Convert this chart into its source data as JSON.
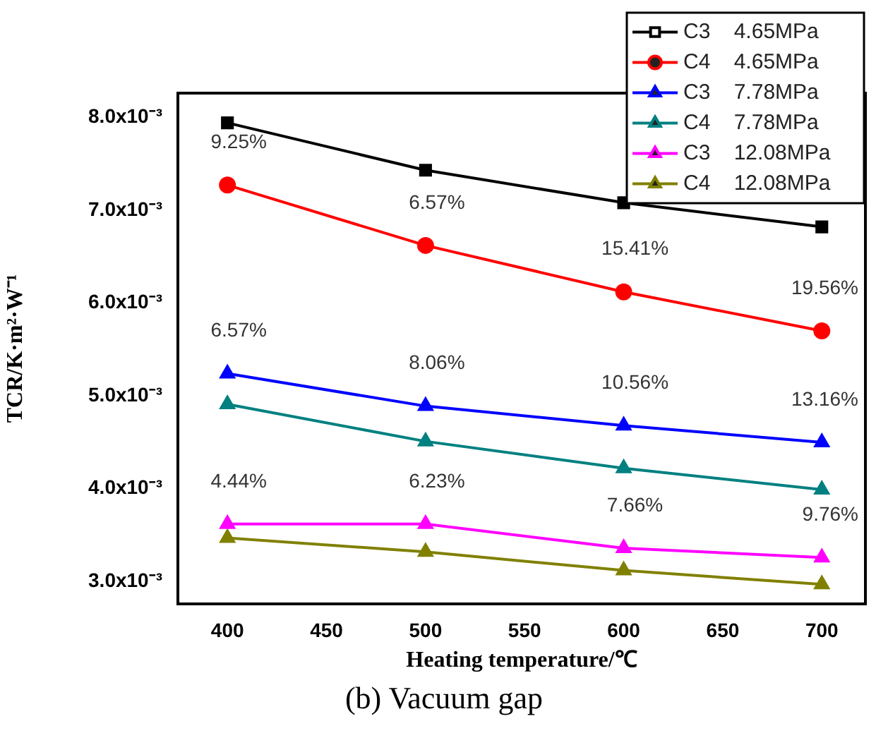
{
  "chart_data": {
    "type": "line",
    "xlabel": "Heating temperature/℃",
    "ylabel": "TCR/K·m²·W⁻¹",
    "x": [
      400,
      500,
      600,
      700
    ],
    "xlim": [
      375,
      722
    ],
    "xticks": [
      400,
      450,
      500,
      550,
      600,
      650,
      700
    ],
    "ylim": [
      0.00276,
      0.00826
    ],
    "yticks": [
      {
        "value": 0.003,
        "label": "3.0x10⁻³"
      },
      {
        "value": 0.004,
        "label": "4.0x10⁻³"
      },
      {
        "value": 0.005,
        "label": "5.0x10⁻³"
      },
      {
        "value": 0.006,
        "label": "6.0x10⁻³"
      },
      {
        "value": 0.007,
        "label": "7.0x10⁻³"
      },
      {
        "value": 0.008,
        "label": "8.0x10⁻³"
      }
    ],
    "series": [
      {
        "name": "C3    4.65MPa",
        "color": "#000000",
        "marker": "square",
        "values": [
          0.00794,
          0.00743,
          0.00708,
          0.00682
        ]
      },
      {
        "name": "C4    4.65MPa",
        "color": "#ff0000",
        "marker": "circle",
        "values": [
          0.00727,
          0.00662,
          0.00612,
          0.0057
        ]
      },
      {
        "name": "C3    7.78MPa",
        "color": "#0000ff",
        "marker": "triangle",
        "values": [
          0.00524,
          0.00489,
          0.00468,
          0.0045
        ]
      },
      {
        "name": "C4    7.78MPa",
        "color": "#008080",
        "marker": "triangle",
        "values": [
          0.00491,
          0.00451,
          0.00422,
          0.00399
        ]
      },
      {
        "name": "C3    12.08MPa",
        "color": "#ff00ff",
        "marker": "triangle",
        "values": [
          0.00362,
          0.00362,
          0.00336,
          0.00326
        ]
      },
      {
        "name": "C4    12.08MPa",
        "color": "#808000",
        "marker": "triangle",
        "values": [
          0.00347,
          0.00332,
          0.00312,
          0.00297
        ]
      }
    ],
    "annotations": [
      "9.25%",
      "6.57%",
      "15.41%",
      "19.56%",
      "6.57%",
      "8.06%",
      "10.56%",
      "13.16%",
      "4.44%",
      "6.23%",
      "7.66%",
      "9.76%",
      "(b)  Vacuum gap"
    ],
    "legend": "top right",
    "line_style": "solid"
  }
}
